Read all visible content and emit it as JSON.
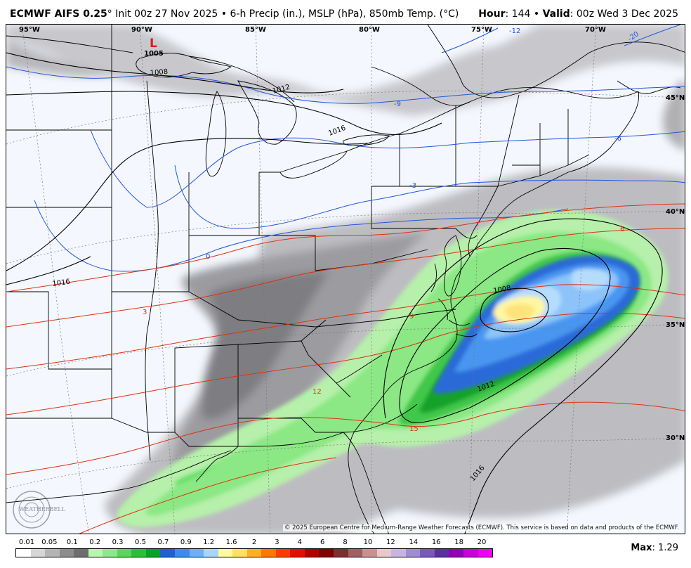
{
  "header": {
    "model": "ECMWF AIFS 0.25",
    "degree": "°",
    "init": "Init 00z 27 Nov 2025",
    "bullet": "•",
    "product": "6-h Precip (in.), MSLP (hPa), 850mb Temp. (°C)",
    "hour_label": "Hour",
    "hour_value": ": 144",
    "valid_label": "Valid",
    "valid_value": ": 00z Wed 3 Dec 2025"
  },
  "map": {
    "longitude_labels": [
      "95°W",
      "90°W",
      "85°W",
      "80°W",
      "75°W",
      "70°W"
    ],
    "latitude_labels": [
      "45°N",
      "40°N",
      "35°N",
      "30°N"
    ],
    "low_center": {
      "symbol": "L",
      "pressure": "1005"
    },
    "isobar_labels": [
      "1008",
      "1012",
      "1016",
      "1016",
      "1008",
      "1012",
      "1016"
    ],
    "temp_labels": [
      "-12",
      "-9",
      "-6",
      "-3",
      "0",
      "3",
      "6",
      "9",
      "12",
      "15",
      "-20"
    ],
    "logo_text": "WEATHERBELL",
    "copyright": "© 2025 European Centre for Medium-Range Weather Forecasts (ECMWF). This service is based on data and products of the ECMWF."
  },
  "legend": {
    "labels": [
      "0.01",
      "0.05",
      "0.1",
      "0.2",
      "0.3",
      "0.5",
      "0.7",
      "0.9",
      "1.2",
      "1.6",
      "2",
      "3",
      "4",
      "6",
      "8",
      "10",
      "12",
      "14",
      "16",
      "18",
      "20"
    ],
    "colors": [
      "#ffffff",
      "#d6d6d6",
      "#b4b4b4",
      "#8c8c8c",
      "#6e6e6e",
      "#b8f5b0",
      "#8ce88a",
      "#5ad65c",
      "#2cbf36",
      "#0aa02a",
      "#2060d0",
      "#3c8cf0",
      "#6cb0f8",
      "#a8d4fc",
      "#fffaa0",
      "#ffe060",
      "#ffb020",
      "#ff7800",
      "#ff3c00",
      "#e01000",
      "#b00000",
      "#800000",
      "#7a3030",
      "#a06060",
      "#c89090",
      "#e8c8c8",
      "#c8b4e0",
      "#a08cd0",
      "#7858b8",
      "#5830a0",
      "#9000b0",
      "#c800d8",
      "#f000f0"
    ]
  },
  "max": {
    "label": "Max",
    "value": ": 1.29"
  },
  "colors": {
    "isobar": "#000000",
    "isotherm_cold": "#2255dd",
    "isotherm_warm": "#e03010",
    "borders": "#000000",
    "low_marker": "#e01a1a"
  }
}
